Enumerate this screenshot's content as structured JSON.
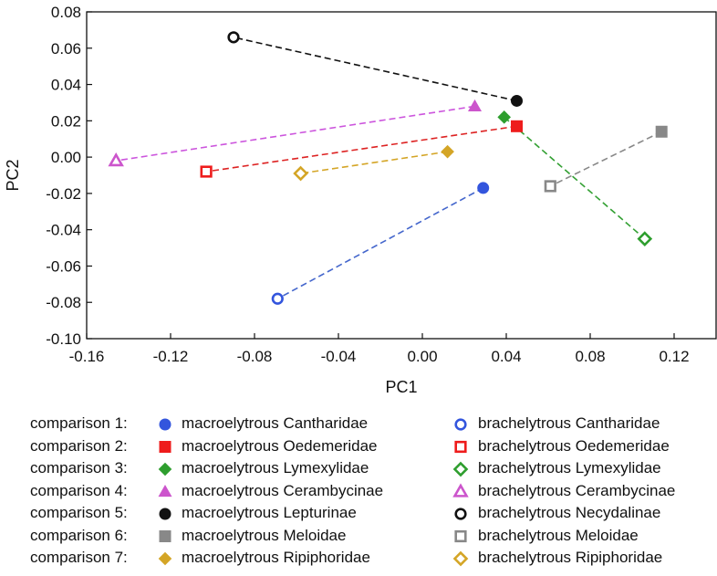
{
  "chart_data": {
    "type": "scatter",
    "xlabel": "PC1",
    "ylabel": "PC2",
    "xlim": [
      -0.16,
      0.14
    ],
    "ylim": [
      -0.1,
      0.08
    ],
    "xticks": [
      "-0.16",
      "-0.12",
      "-0.08",
      "-0.04",
      "0.00",
      "0.04",
      "0.08",
      "0.12"
    ],
    "yticks": [
      "0.08",
      "0.06",
      "0.04",
      "0.02",
      "0.00",
      "-0.02",
      "-0.04",
      "-0.06",
      "-0.08",
      "-0.10"
    ],
    "grid": false,
    "comparisons": [
      {
        "label": "comparison 1:",
        "color": "#3355dd",
        "line_color": "#4466cc",
        "marker": "circle",
        "macro_name": "macroelytrous Cantharidae",
        "macro": [
          0.029,
          -0.017
        ],
        "brach_name": "brachelytrous Cantharidae",
        "brach": [
          -0.069,
          -0.078
        ]
      },
      {
        "label": "comparison 2:",
        "color": "#ee1c1c",
        "line_color": "#dd2222",
        "marker": "square",
        "macro_name": "macroelytrous Oedemeridae",
        "macro": [
          0.045,
          0.017
        ],
        "brach_name": "brachelytrous Oedemeridae",
        "brach": [
          -0.103,
          -0.008
        ]
      },
      {
        "label": "comparison 3:",
        "color": "#2e9e2e",
        "line_color": "#33a033",
        "marker": "diamond",
        "macro_name": "macroelytrous Lymexylidae",
        "macro": [
          0.039,
          0.022
        ],
        "brach_name": "brachelytrous Lymexylidae",
        "brach": [
          0.106,
          -0.045
        ]
      },
      {
        "label": "comparison 4:",
        "color": "#cc55cc",
        "line_color": "#cc55dd",
        "marker": "triangle",
        "macro_name": "macroelytrous Cerambycinae",
        "macro": [
          0.025,
          0.028
        ],
        "brach_name": "brachelytrous Cerambycinae",
        "brach": [
          -0.146,
          -0.002
        ]
      },
      {
        "label": "comparison 5:",
        "color": "#111111",
        "line_color": "#111111",
        "marker": "circle",
        "macro_name": "macroelytrous Lepturinae",
        "macro": [
          0.045,
          0.031
        ],
        "brach_name": "brachelytrous Necydalinae",
        "brach": [
          -0.09,
          0.066
        ]
      },
      {
        "label": "comparison 6:",
        "color": "#888888",
        "line_color": "#888888",
        "marker": "square",
        "macro_name": "macroelytrous Meloidae",
        "macro": [
          0.114,
          0.014
        ],
        "brach_name": "brachelytrous Meloidae",
        "brach": [
          0.061,
          -0.016
        ]
      },
      {
        "label": "comparison 7:",
        "color": "#d4a526",
        "line_color": "#d4a526",
        "marker": "diamond",
        "macro_name": "macroelytrous Ripiphoridae",
        "macro": [
          0.012,
          0.003
        ],
        "brach_name": "brachelytrous Ripiphoridae",
        "brach": [
          -0.058,
          -0.009
        ]
      }
    ]
  }
}
